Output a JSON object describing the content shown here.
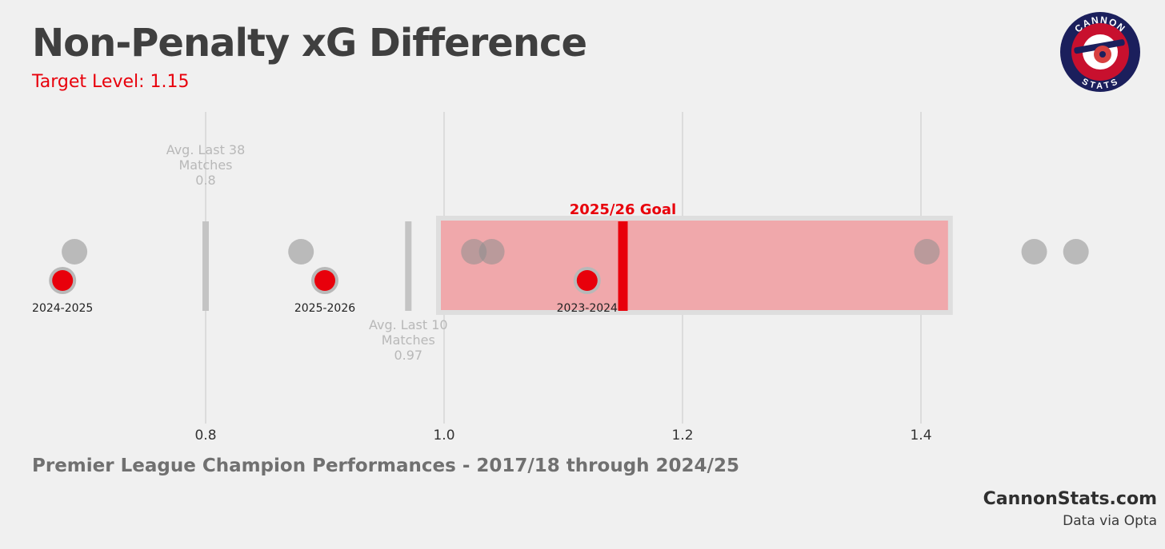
{
  "header": {
    "title": "Non-Penalty xG Difference",
    "subtitle": "Target Level: 1.15"
  },
  "logo": {
    "top_text": "CANNON",
    "bottom_text": "STATS",
    "icon": "cannon-icon",
    "colors": {
      "outer": "#1b1f5c",
      "ring": "#c8102e",
      "inner": "#ffffff"
    }
  },
  "footer": {
    "footnote": "Premier League Champion Performances - 2017/18 through 2024/25",
    "brand": "CannonStats.com",
    "source": "Data via Opta"
  },
  "colors": {
    "accent": "#e8000b",
    "target_band": "#f0a8ab",
    "champion_points": "#b5b5b5",
    "reference_lines": "#c4c4c4",
    "annotation_text": "#b8b8b8"
  },
  "chart_data": {
    "type": "scatter",
    "xlim": [
      0.66,
      1.52
    ],
    "x_ticks": [
      {
        "value": 0.8,
        "label": "0.8"
      },
      {
        "value": 1.0,
        "label": "1.0"
      },
      {
        "value": 1.2,
        "label": "1.2"
      },
      {
        "value": 1.4,
        "label": "1.4"
      }
    ],
    "grid": true,
    "target_band": {
      "from": 1.0,
      "to": 1.42
    },
    "goal": {
      "value": 1.15,
      "label": "2025/26 Goal"
    },
    "reference_lines": [
      {
        "value": 0.8,
        "label_lines": [
          "Avg. Last 38",
          "Matches",
          "0.8"
        ],
        "label_position": "above"
      },
      {
        "value": 0.97,
        "label_lines": [
          "Avg. Last 10",
          "Matches",
          "0.97"
        ],
        "label_position": "below"
      }
    ],
    "champion_performances": [
      0.69,
      0.88,
      1.025,
      1.04,
      1.405,
      1.495,
      1.53
    ],
    "highlighted_seasons": [
      {
        "label": "2024-2025",
        "value": 0.68
      },
      {
        "label": "2025-2026",
        "value": 0.9
      },
      {
        "label": "2023-2024",
        "value": 1.12
      }
    ]
  }
}
